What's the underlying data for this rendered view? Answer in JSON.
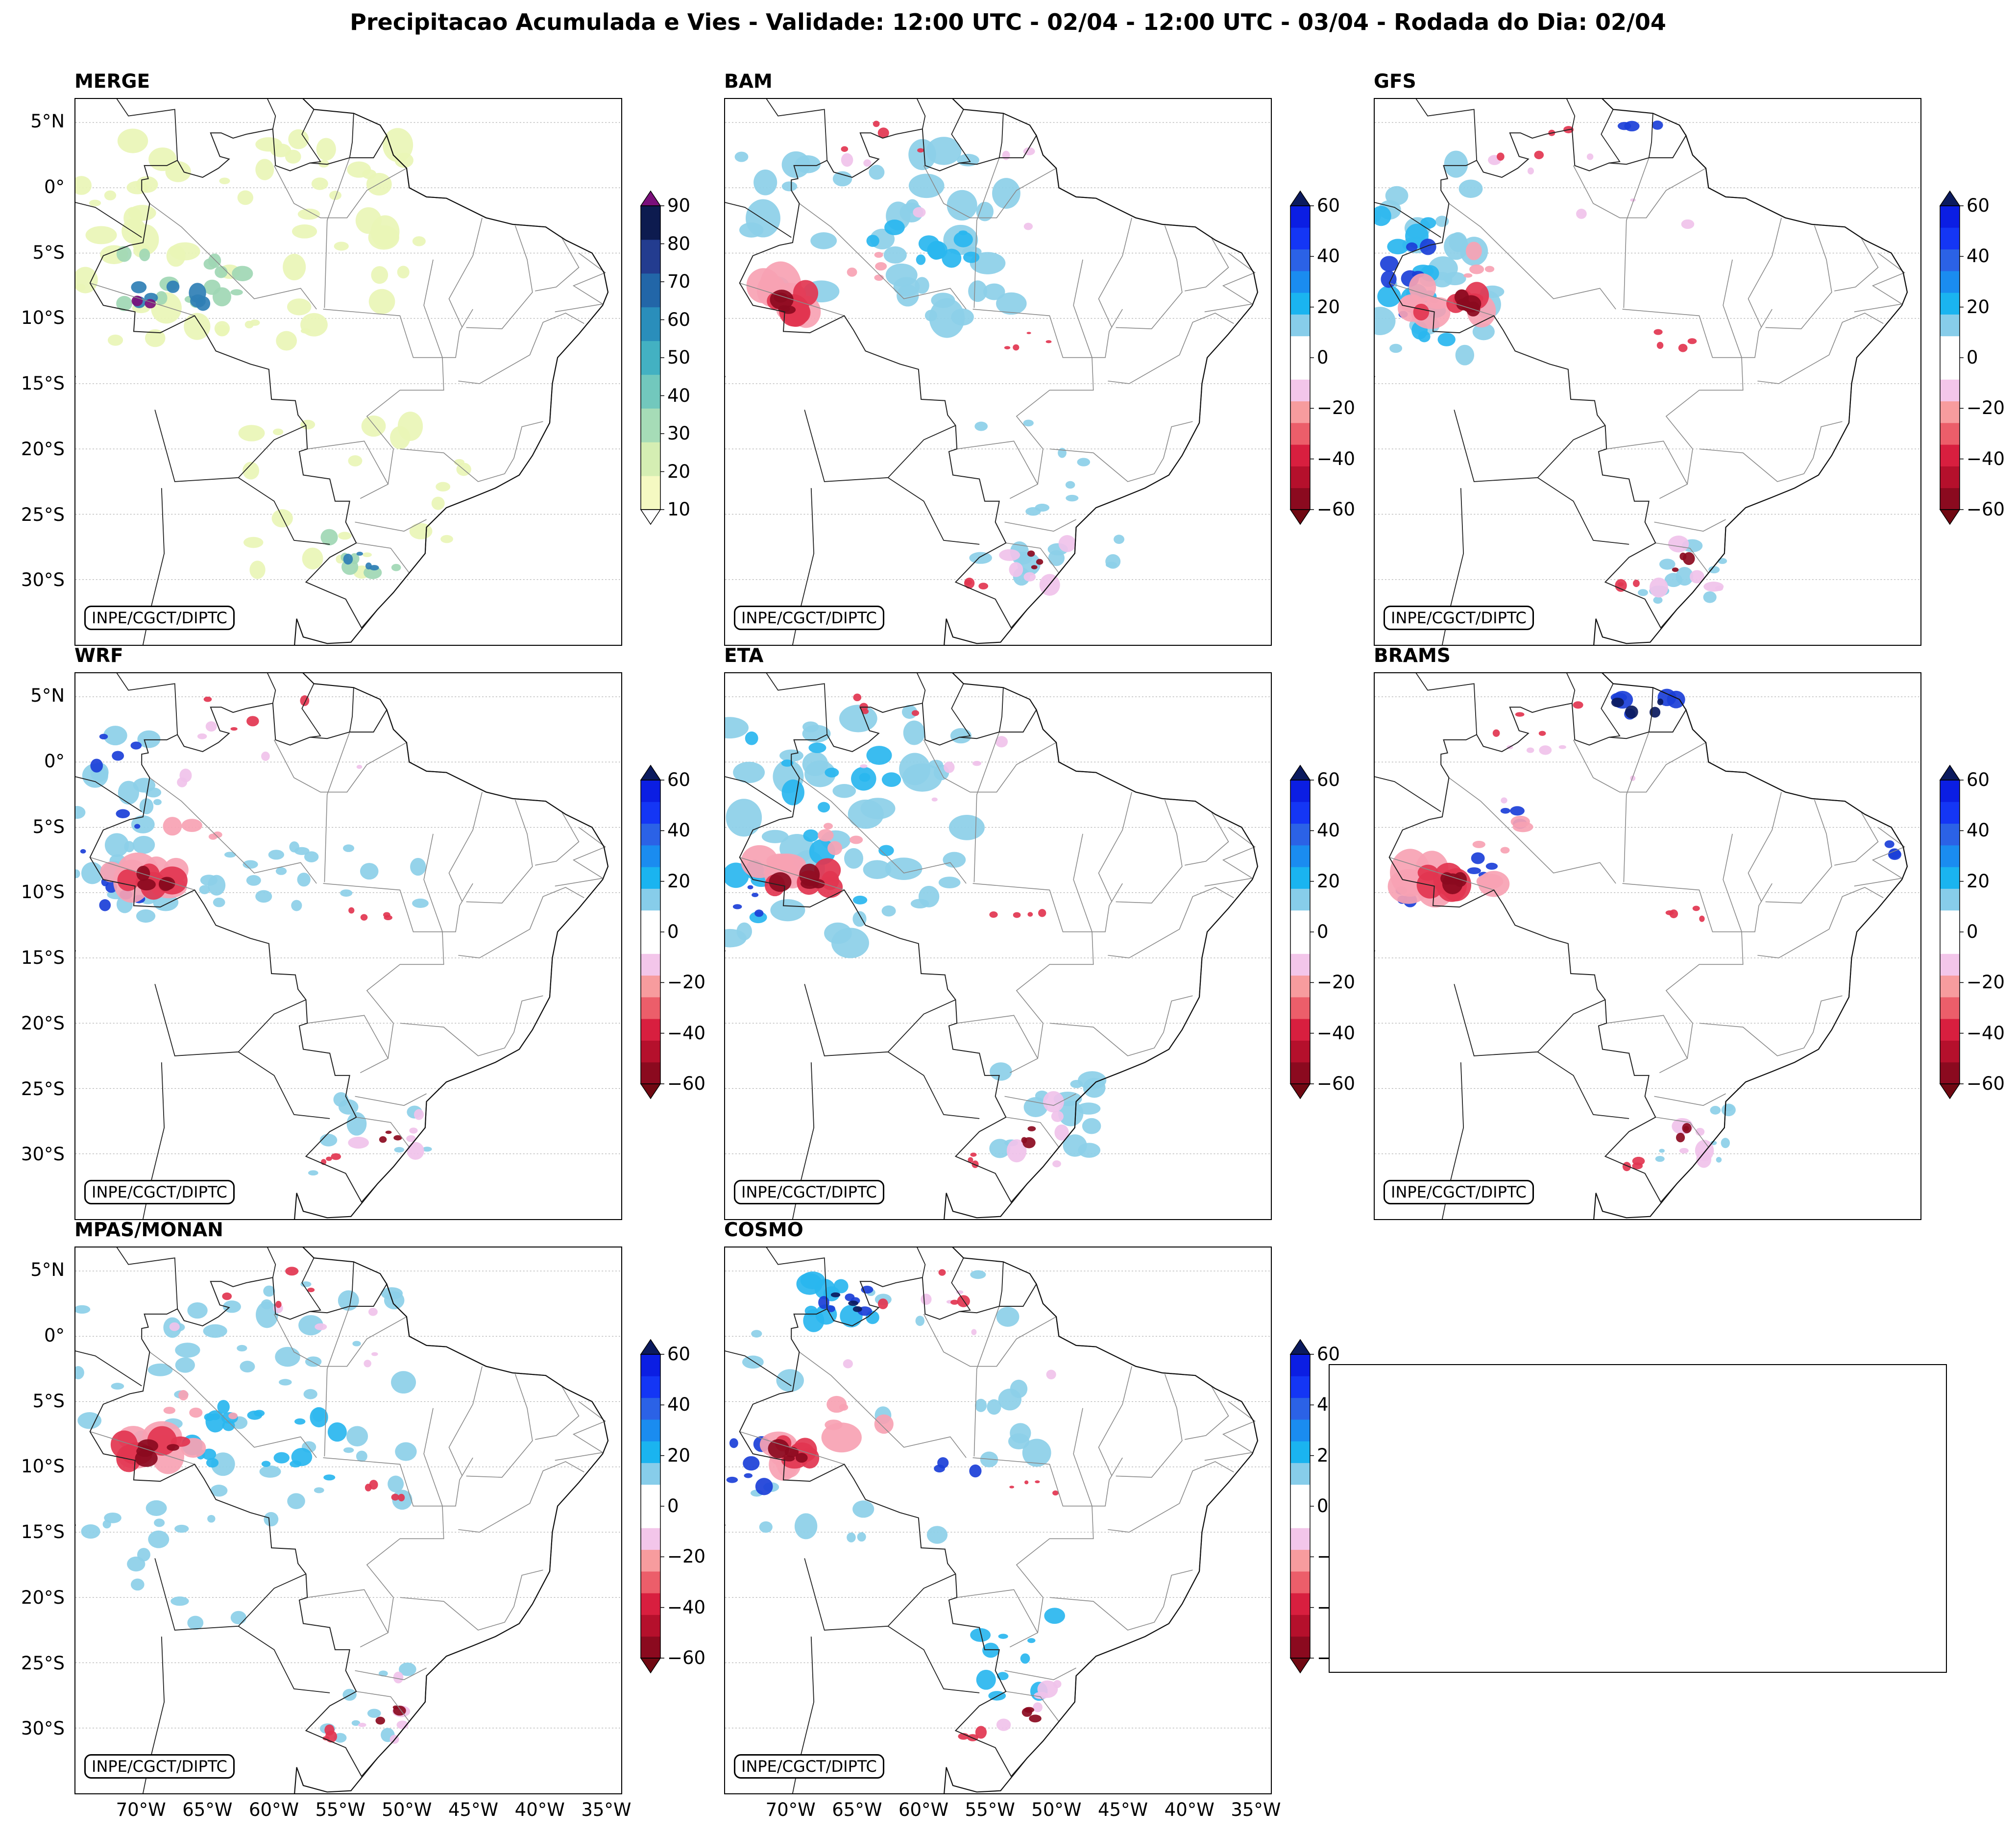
{
  "title": "Precipitacao Acumulada e Vies - Validade: 12:00 UTC - 02/04 - 12:00 UTC - 03/04 - Rodada do Dia: 02/04",
  "credit": "INPE/CGCT/DIPTC",
  "lat_labels": [
    "5°N",
    "0°",
    "5°S",
    "10°S",
    "15°S",
    "20°S",
    "25°S",
    "30°S"
  ],
  "lon_labels": [
    "70°W",
    "65°W",
    "60°W",
    "55°W",
    "50°W",
    "45°W",
    "40°W",
    "35°W"
  ],
  "panels": [
    {
      "name": "MERGE",
      "kind": "precip"
    },
    {
      "name": "BAM",
      "kind": "bias"
    },
    {
      "name": "GFS",
      "kind": "bias"
    },
    {
      "name": "WRF",
      "kind": "bias"
    },
    {
      "name": "ETA",
      "kind": "bias"
    },
    {
      "name": "BRAMS",
      "kind": "bias"
    },
    {
      "name": "MPAS/MONAN",
      "kind": "bias"
    },
    {
      "name": "COSMO",
      "kind": "bias"
    }
  ],
  "colorbars": {
    "precip": {
      "ticks": [
        "90",
        "80",
        "70",
        "60",
        "50",
        "40",
        "30",
        "20",
        "10"
      ],
      "colors": [
        "#f5f9c2",
        "#d5eeb3",
        "#a6dcb7",
        "#72c8bd",
        "#43b1c2",
        "#2a8ebb",
        "#2266a8",
        "#233c8f",
        "#0d1b4f"
      ],
      "over": "#7a0f7a",
      "under": "#ffffff"
    },
    "bias": {
      "ticks": [
        "60",
        "40",
        "20",
        "0",
        "−20",
        "−40",
        "−60"
      ],
      "colors": [
        "#8b0a1f",
        "#b5102c",
        "#d81f3f",
        "#ec5e6a",
        "#f79c9e",
        "#f3c6ea",
        "#ffffff",
        "#ffffff",
        "#87cdea",
        "#1ab4f0",
        "#1a8cf0",
        "#2b62e6",
        "#1436f5",
        "#0b1ee3"
      ],
      "over": "#0b1a5e",
      "under": "#700812"
    }
  },
  "map_colors": {
    "wet_light": "#e9f5b6",
    "wet_mid": "#9fd7b4",
    "wet_dark": "#2f7fb5",
    "wet_max": "#7a0f7a",
    "neg_dark": "#8b0a1f",
    "neg_mid": "#e23550",
    "neg_light": "#f7a2b3",
    "neg_pink": "#f0c2ea",
    "pos_light": "#8ccfe8",
    "pos_mid": "#29b6ef",
    "pos_dark": "#1b3fd8",
    "pos_deep": "#0b1a5e"
  }
}
